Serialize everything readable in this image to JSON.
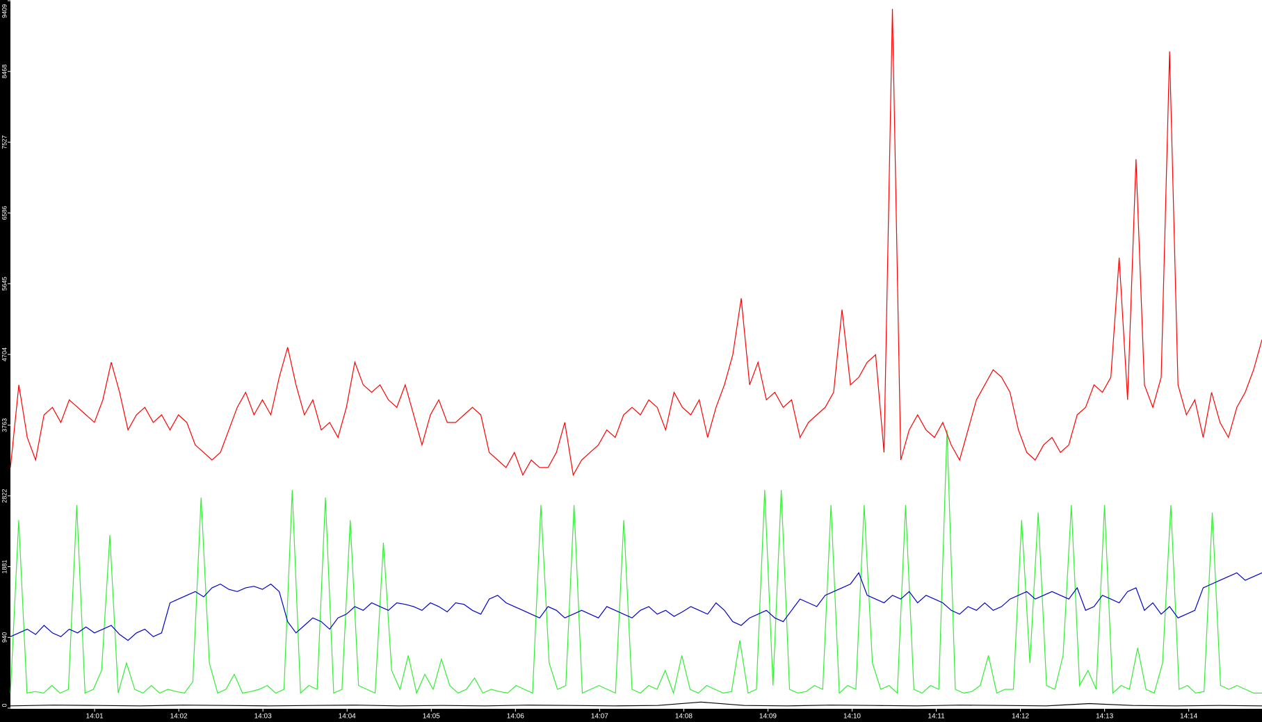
{
  "chart_data": {
    "type": "line",
    "xlim": [
      0,
      14.87
    ],
    "xticks": [
      {
        "value": 1,
        "label": "14:01"
      },
      {
        "value": 2,
        "label": "14:02"
      },
      {
        "value": 3,
        "label": "14:03"
      },
      {
        "value": 4,
        "label": "14:04"
      },
      {
        "value": 5,
        "label": "14:05"
      },
      {
        "value": 6,
        "label": "14:06"
      },
      {
        "value": 7,
        "label": "14:07"
      },
      {
        "value": 8,
        "label": "14:08"
      },
      {
        "value": 9,
        "label": "14:09"
      },
      {
        "value": 10,
        "label": "14:10"
      },
      {
        "value": 11,
        "label": "14:11"
      },
      {
        "value": 12,
        "label": "14:12"
      },
      {
        "value": 13,
        "label": "14:13"
      },
      {
        "value": 14,
        "label": "14:14"
      }
    ],
    "ylim": [
      0,
      9409
    ],
    "yticks": [
      0,
      940,
      1881,
      2822,
      3763,
      4704,
      5645,
      6586,
      7527,
      8468,
      9409
    ],
    "series": [
      {
        "color": "#ff0000",
        "values": [
          3200,
          4300,
          3600,
          3300,
          3900,
          4000,
          3800,
          4100,
          4000,
          3900,
          3800,
          4100,
          4600,
          4200,
          3700,
          3900,
          4000,
          3800,
          3900,
          3700,
          3900,
          3800,
          3500,
          3400,
          3300,
          3400,
          3700,
          4000,
          4200,
          3900,
          4100,
          3900,
          4400,
          4800,
          4300,
          3900,
          4100,
          3700,
          3800,
          3600,
          4000,
          4600,
          4300,
          4200,
          4300,
          4100,
          4000,
          4300,
          3900,
          3500,
          3900,
          4100,
          3800,
          3800,
          3900,
          4000,
          3900,
          3400,
          3300,
          3200,
          3400,
          3100,
          3300,
          3200,
          3200,
          3400,
          3800,
          3100,
          3300,
          3400,
          3500,
          3700,
          3600,
          3900,
          4000,
          3900,
          4100,
          4000,
          3700,
          4200,
          4000,
          3900,
          4100,
          3600,
          4000,
          4300,
          4700,
          5450,
          4300,
          4600,
          4100,
          4200,
          4000,
          4100,
          3600,
          3800,
          3900,
          4000,
          4200,
          5300,
          4300,
          4400,
          4600,
          4700,
          3400,
          9300,
          3300,
          3700,
          3900,
          3700,
          3600,
          3800,
          3500,
          3300,
          3700,
          4100,
          4300,
          4500,
          4400,
          4200,
          3700,
          3400,
          3300,
          3500,
          3600,
          3400,
          3500,
          3900,
          4000,
          4300,
          4200,
          4400,
          5990,
          4100,
          7300,
          4300,
          4000,
          4400,
          8735,
          4300,
          3900,
          4100,
          3600,
          4200,
          3800,
          3600,
          4000,
          4200,
          4500,
          4900
        ]
      },
      {
        "color": "#0000cc",
        "values": [
          950,
          1000,
          1050,
          980,
          1100,
          1000,
          950,
          1050,
          1000,
          1080,
          1000,
          1050,
          1100,
          980,
          900,
          1000,
          1050,
          950,
          1000,
          1400,
          1450,
          1500,
          1550,
          1480,
          1600,
          1650,
          1580,
          1550,
          1600,
          1620,
          1580,
          1650,
          1550,
          1150,
          1000,
          1100,
          1200,
          1150,
          1050,
          1200,
          1250,
          1350,
          1300,
          1400,
          1350,
          1300,
          1400,
          1380,
          1350,
          1300,
          1400,
          1350,
          1280,
          1400,
          1380,
          1300,
          1250,
          1450,
          1500,
          1400,
          1350,
          1300,
          1250,
          1200,
          1350,
          1300,
          1200,
          1250,
          1300,
          1250,
          1200,
          1350,
          1300,
          1250,
          1200,
          1300,
          1350,
          1250,
          1300,
          1220,
          1280,
          1350,
          1300,
          1250,
          1400,
          1300,
          1150,
          1100,
          1200,
          1250,
          1300,
          1200,
          1150,
          1300,
          1450,
          1400,
          1350,
          1500,
          1550,
          1600,
          1650,
          1800,
          1500,
          1450,
          1400,
          1500,
          1450,
          1550,
          1400,
          1500,
          1450,
          1400,
          1300,
          1250,
          1350,
          1300,
          1400,
          1300,
          1350,
          1450,
          1500,
          1550,
          1450,
          1500,
          1550,
          1500,
          1450,
          1600,
          1300,
          1350,
          1500,
          1450,
          1400,
          1550,
          1600,
          1300,
          1400,
          1250,
          1350,
          1200,
          1250,
          1300,
          1600,
          1650,
          1700,
          1750,
          1800,
          1700,
          1750,
          1800
        ]
      },
      {
        "color": "#33ee33",
        "values": [
          200,
          2500,
          200,
          220,
          200,
          300,
          200,
          250,
          2700,
          200,
          250,
          500,
          2300,
          200,
          600,
          250,
          200,
          300,
          200,
          250,
          220,
          200,
          350,
          2800,
          600,
          200,
          250,
          450,
          200,
          220,
          250,
          300,
          200,
          250,
          2900,
          200,
          300,
          250,
          2800,
          200,
          250,
          2500,
          300,
          250,
          200,
          2200,
          500,
          250,
          700,
          200,
          450,
          250,
          650,
          300,
          200,
          250,
          400,
          200,
          250,
          220,
          200,
          300,
          250,
          200,
          2700,
          600,
          250,
          300,
          2700,
          200,
          250,
          300,
          250,
          200,
          2500,
          250,
          200,
          300,
          250,
          500,
          200,
          700,
          250,
          200,
          300,
          250,
          200,
          220,
          900,
          200,
          250,
          2900,
          300,
          2900,
          250,
          200,
          220,
          300,
          250,
          2700,
          200,
          300,
          250,
          2700,
          600,
          250,
          300,
          200,
          2700,
          250,
          200,
          300,
          250,
          3700,
          250,
          200,
          220,
          300,
          700,
          200,
          250,
          250,
          2500,
          600,
          2600,
          300,
          250,
          700,
          2700,
          300,
          500,
          250,
          2700,
          200,
          300,
          250,
          800,
          250,
          200,
          600,
          2700,
          250,
          300,
          200,
          220,
          2600,
          300,
          250,
          300,
          250,
          200,
          200
        ]
      },
      {
        "color": "#000000",
        "values": [
          30,
          40,
          35,
          30,
          40,
          35,
          30,
          35,
          40,
          30,
          35,
          30,
          40,
          35,
          30,
          35,
          80,
          35,
          30,
          40,
          35,
          30,
          40,
          35,
          30,
          60,
          35,
          30,
          35,
          30
        ]
      }
    ]
  }
}
